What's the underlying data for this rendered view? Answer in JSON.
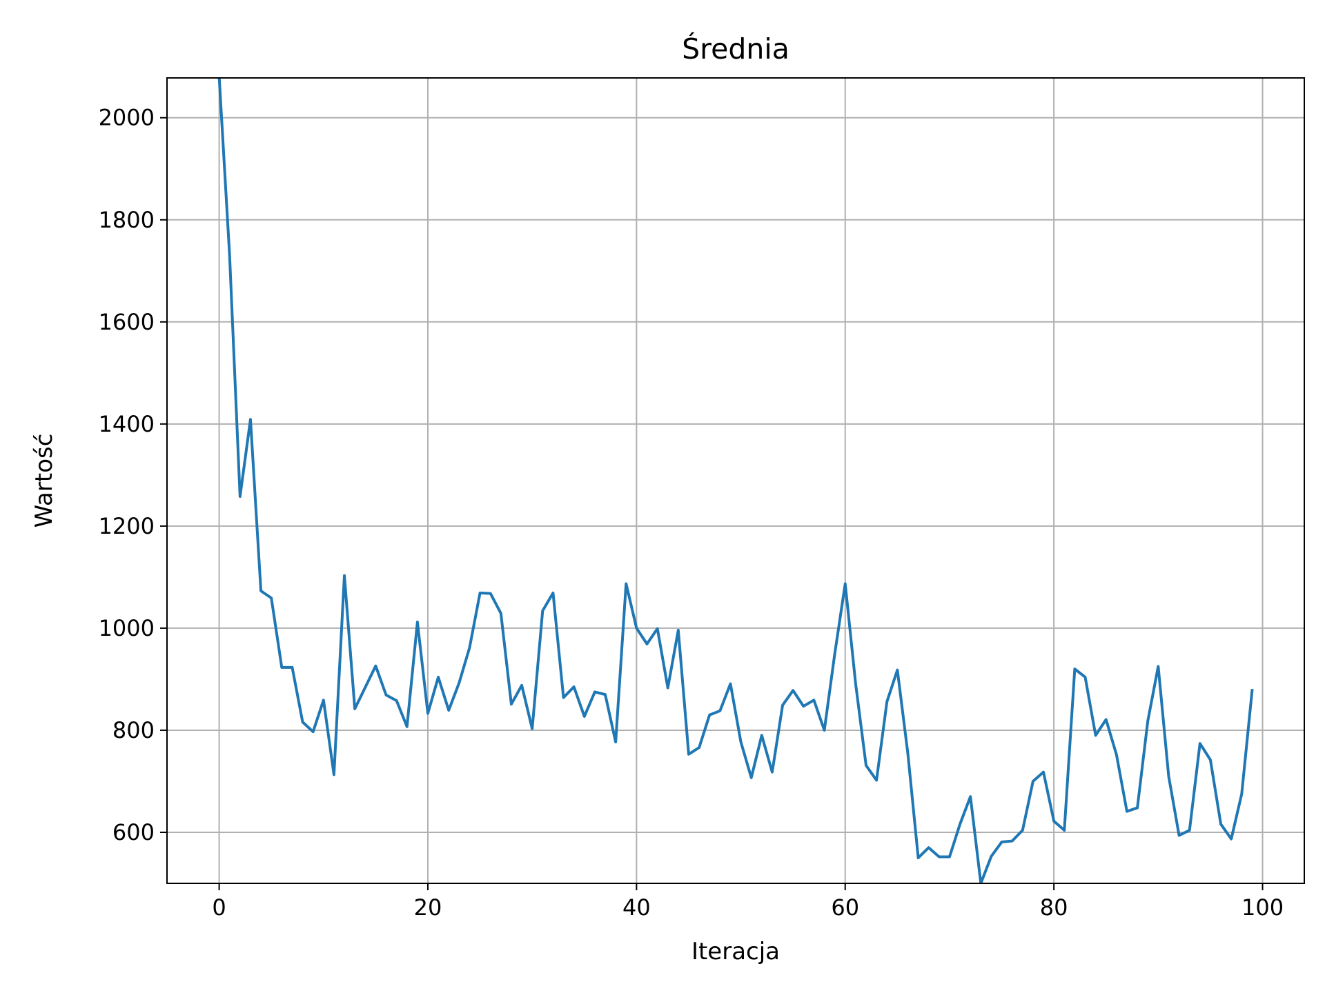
{
  "chart_data": {
    "type": "line",
    "title": "Średnia",
    "xlabel": "Iteracja",
    "ylabel": "Wartość",
    "xlim": [
      -5,
      104
    ],
    "ylim": [
      500,
      2078
    ],
    "xticks": [
      0,
      20,
      40,
      60,
      80,
      100
    ],
    "yticks": [
      600,
      800,
      1000,
      1200,
      1400,
      1600,
      1800,
      2000
    ],
    "grid": true,
    "line_color": "#1f77b4",
    "series": [
      {
        "x": [
          0,
          1,
          2,
          3,
          4,
          5,
          6,
          7,
          8,
          9,
          10,
          11,
          12,
          13,
          14,
          15,
          16,
          17,
          18,
          19,
          20,
          21,
          22,
          23,
          24,
          25,
          26,
          27,
          28,
          29,
          30,
          31,
          32,
          33,
          34,
          35,
          36,
          37,
          38,
          39,
          40,
          41,
          42,
          43,
          44,
          45,
          46,
          47,
          48,
          49,
          50,
          51,
          52,
          53,
          54,
          55,
          56,
          57,
          58,
          59,
          60,
          61,
          62,
          63,
          64,
          65,
          66,
          67,
          68,
          69,
          70,
          71,
          72,
          73,
          74,
          75,
          76,
          77,
          78,
          79,
          80,
          81,
          82,
          83,
          84,
          85,
          86,
          87,
          88,
          89,
          90,
          91,
          92,
          93,
          94,
          95,
          96,
          97,
          98,
          99
        ],
        "values": [
          2080,
          1730,
          1258,
          1409,
          1073,
          1059,
          923,
          923,
          816,
          797,
          859,
          713,
          1103,
          842,
          884,
          926,
          869,
          858,
          807,
          1012,
          833,
          904,
          839,
          893,
          962,
          1069,
          1068,
          1029,
          851,
          888,
          803,
          1034,
          1069,
          864,
          885,
          827,
          875,
          870,
          777,
          1087,
          1000,
          969,
          999,
          883,
          996,
          753,
          766,
          830,
          838,
          891,
          777,
          707,
          790,
          718,
          849,
          878,
          847,
          859,
          800,
          950,
          1087,
          891,
          731,
          702,
          856,
          918,
          755,
          550,
          570,
          552,
          552,
          616,
          670,
          500,
          553,
          581,
          583,
          604,
          700,
          718,
          622,
          604,
          920,
          904,
          790,
          821,
          752,
          641,
          648,
          818,
          925,
          710,
          594,
          604,
          774,
          742,
          616,
          587,
          675,
          878
        ]
      }
    ]
  }
}
